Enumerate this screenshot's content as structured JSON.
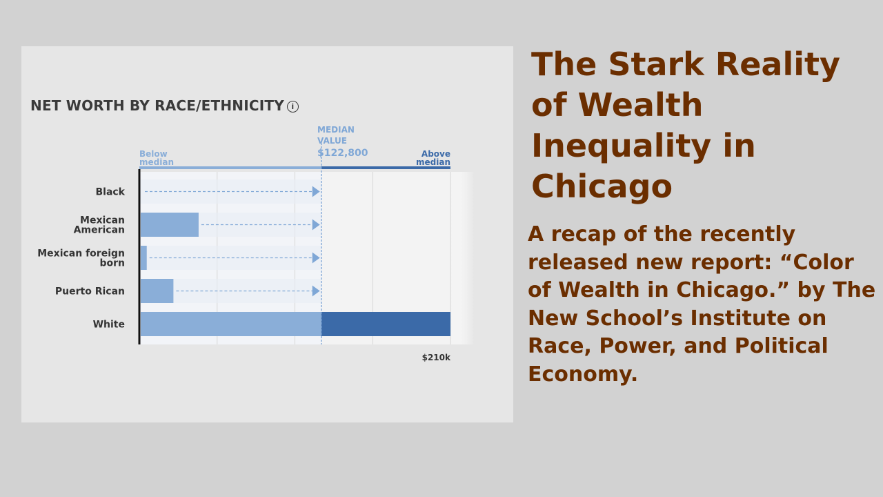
{
  "chart_data": {
    "type": "bar",
    "title": "NET WORTH BY RACE/ETHNICITY",
    "categories": [
      "Black",
      "Mexican American",
      "Mexican foreign born",
      "Puerto Rican",
      "White"
    ],
    "values": [
      0,
      40000,
      5000,
      23000,
      210000
    ],
    "median_value": 122800,
    "median_label_line1": "MEDIAN",
    "median_label_line2": "VALUE",
    "median_label_value": "$122,800",
    "below_label_line1": "Below",
    "below_label_line2": "median",
    "above_label_line1": "Above",
    "above_label_line2": "median",
    "max_tick_label": "$210k",
    "xlim": [
      0,
      210000
    ],
    "colors": {
      "below_bar": "#8aaed8",
      "above_bar": "#3b6aa8",
      "median_line": "#7fa7d6",
      "label_below": "#8aaed8",
      "label_above": "#3b6aa8"
    }
  },
  "info_icon": "info-icon",
  "headline": "The Stark Reality of Wealth Inequality in Chicago",
  "subhead": "A recap of the recently released new report: “Color of Wealth in Chicago.” by The New School’s Institute on Race, Power, and Political Economy."
}
